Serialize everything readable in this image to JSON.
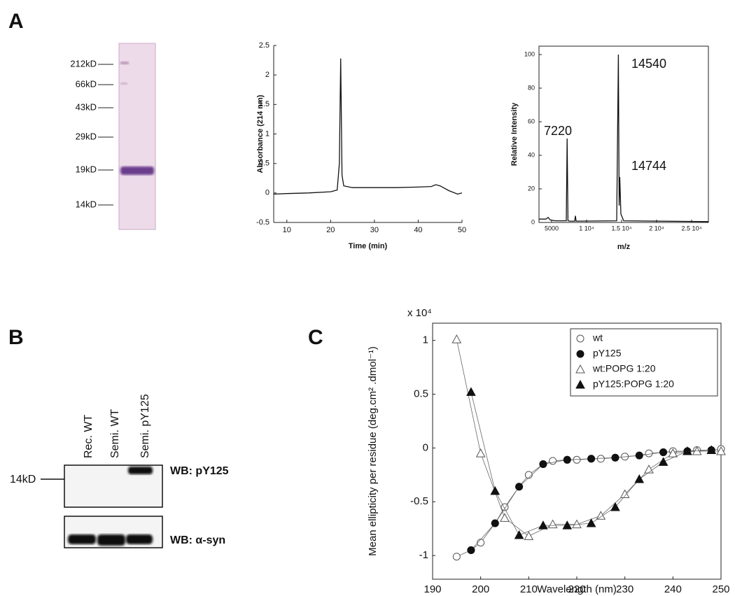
{
  "panels": {
    "a": "A",
    "b": "B",
    "c": "C"
  },
  "gel": {
    "markers": [
      "212kD",
      "66kD",
      "43kD",
      "29kD",
      "19kD",
      "14kD"
    ]
  },
  "blot": {
    "lanes": [
      "Rec. WT",
      "Semi. WT",
      "Semi. pY125"
    ],
    "marker": "14kD",
    "rows": [
      "WB: pY125",
      "WB: α-syn"
    ]
  },
  "chart_data": [
    {
      "type": "line",
      "xlabel": "Time (min)",
      "ylabel": "Absorbance (214 nm)",
      "color": "#111111",
      "x": [
        7,
        10,
        15,
        20,
        21.5,
        22,
        22.3,
        22.6,
        23,
        25,
        30,
        35,
        40,
        43,
        44,
        45,
        47,
        49,
        50
      ],
      "values": [
        -0.02,
        -0.01,
        0,
        0.02,
        0.05,
        0.5,
        2.28,
        0.3,
        0.12,
        0.09,
        0.09,
        0.09,
        0.1,
        0.11,
        0.14,
        0.12,
        0.04,
        -0.02,
        0
      ],
      "xlim": [
        7,
        50
      ],
      "xticks": [
        10,
        20,
        30,
        40,
        50
      ],
      "ylim": [
        -0.5,
        2.5
      ],
      "yticks": [
        -0.5,
        0,
        0.5,
        1,
        1.5,
        2,
        2.5
      ]
    },
    {
      "type": "line",
      "xlabel": "m/z",
      "ylabel": "Relative Intensity",
      "color": "#111111",
      "x": [
        3200,
        4200,
        4500,
        4800,
        5500,
        7100,
        7220,
        7340,
        7600,
        8300,
        8400,
        8500,
        14300,
        14540,
        14650,
        14744,
        14900,
        15300,
        27400
      ],
      "values": [
        2,
        2,
        3,
        1.5,
        1,
        1,
        50,
        1,
        0.8,
        0.8,
        4,
        0.8,
        1,
        100,
        10,
        27,
        5,
        1,
        0.5
      ],
      "annotations": [
        "7220",
        "14540",
        "14744"
      ],
      "xlim": [
        3200,
        27400
      ],
      "xticks": [
        5000,
        {
          "value": 10000,
          "label": "1 10⁴"
        },
        {
          "value": 15000,
          "label": "1.5 10⁴"
        },
        {
          "value": 20000,
          "label": "2 10⁴"
        },
        {
          "value": 25000,
          "label": "2.5 10⁴"
        }
      ],
      "ylim": [
        0,
        105
      ],
      "yticks": [
        0,
        20,
        40,
        60,
        80,
        100
      ]
    },
    {
      "type": "line",
      "xlabel": "Wavelength (nm)",
      "ylabel": "Mean ellipticity per residue (deg.cm² .dmol⁻¹)",
      "multiplier": "x 10⁴",
      "legend": "upper right",
      "xlim": [
        190,
        250
      ],
      "xticks": [
        190,
        200,
        210,
        220,
        230,
        240,
        250
      ],
      "ylim": [
        -1.22,
        1.16
      ],
      "yticks": [
        -1,
        -0.5,
        0,
        0.5,
        1
      ],
      "series": [
        {
          "name": "wt",
          "marker": "circle-open",
          "color": "#555555",
          "x": [
            195,
            198,
            200,
            203,
            205,
            208,
            210,
            213,
            215,
            218,
            220,
            223,
            225,
            228,
            230,
            233,
            235,
            238,
            240,
            243,
            245,
            248,
            250
          ],
          "values": [
            -1.01,
            -0.95,
            -0.88,
            -0.7,
            -0.55,
            -0.36,
            -0.25,
            -0.15,
            -0.12,
            -0.11,
            -0.11,
            -0.1,
            -0.1,
            -0.09,
            -0.08,
            -0.07,
            -0.05,
            -0.04,
            -0.03,
            -0.03,
            -0.02,
            -0.02,
            -0.01
          ]
        },
        {
          "name": "pY125",
          "marker": "circle-filled",
          "color": "#111111",
          "x": [
            198,
            203,
            208,
            213,
            218,
            223,
            228,
            233,
            238,
            243,
            248
          ],
          "values": [
            -0.95,
            -0.7,
            -0.36,
            -0.15,
            -0.11,
            -0.1,
            -0.09,
            -0.07,
            -0.04,
            -0.03,
            -0.02
          ]
        },
        {
          "name": "wt:POPG 1:20",
          "marker": "triangle-open",
          "color": "#555555",
          "x": [
            195,
            200,
            205,
            210,
            215,
            220,
            225,
            230,
            235,
            240,
            245,
            250
          ],
          "values": [
            1.01,
            -0.05,
            -0.65,
            -0.82,
            -0.71,
            -0.71,
            -0.63,
            -0.43,
            -0.2,
            -0.05,
            -0.03,
            -0.03
          ]
        },
        {
          "name": "pY125:POPG 1:20",
          "marker": "triangle-filled",
          "color": "#111111",
          "x": [
            198,
            203,
            208,
            213,
            218,
            223,
            228,
            233,
            238,
            243,
            248
          ],
          "values": [
            0.52,
            -0.4,
            -0.81,
            -0.72,
            -0.72,
            -0.7,
            -0.55,
            -0.29,
            -0.13,
            -0.03,
            -0.02
          ]
        }
      ]
    }
  ]
}
